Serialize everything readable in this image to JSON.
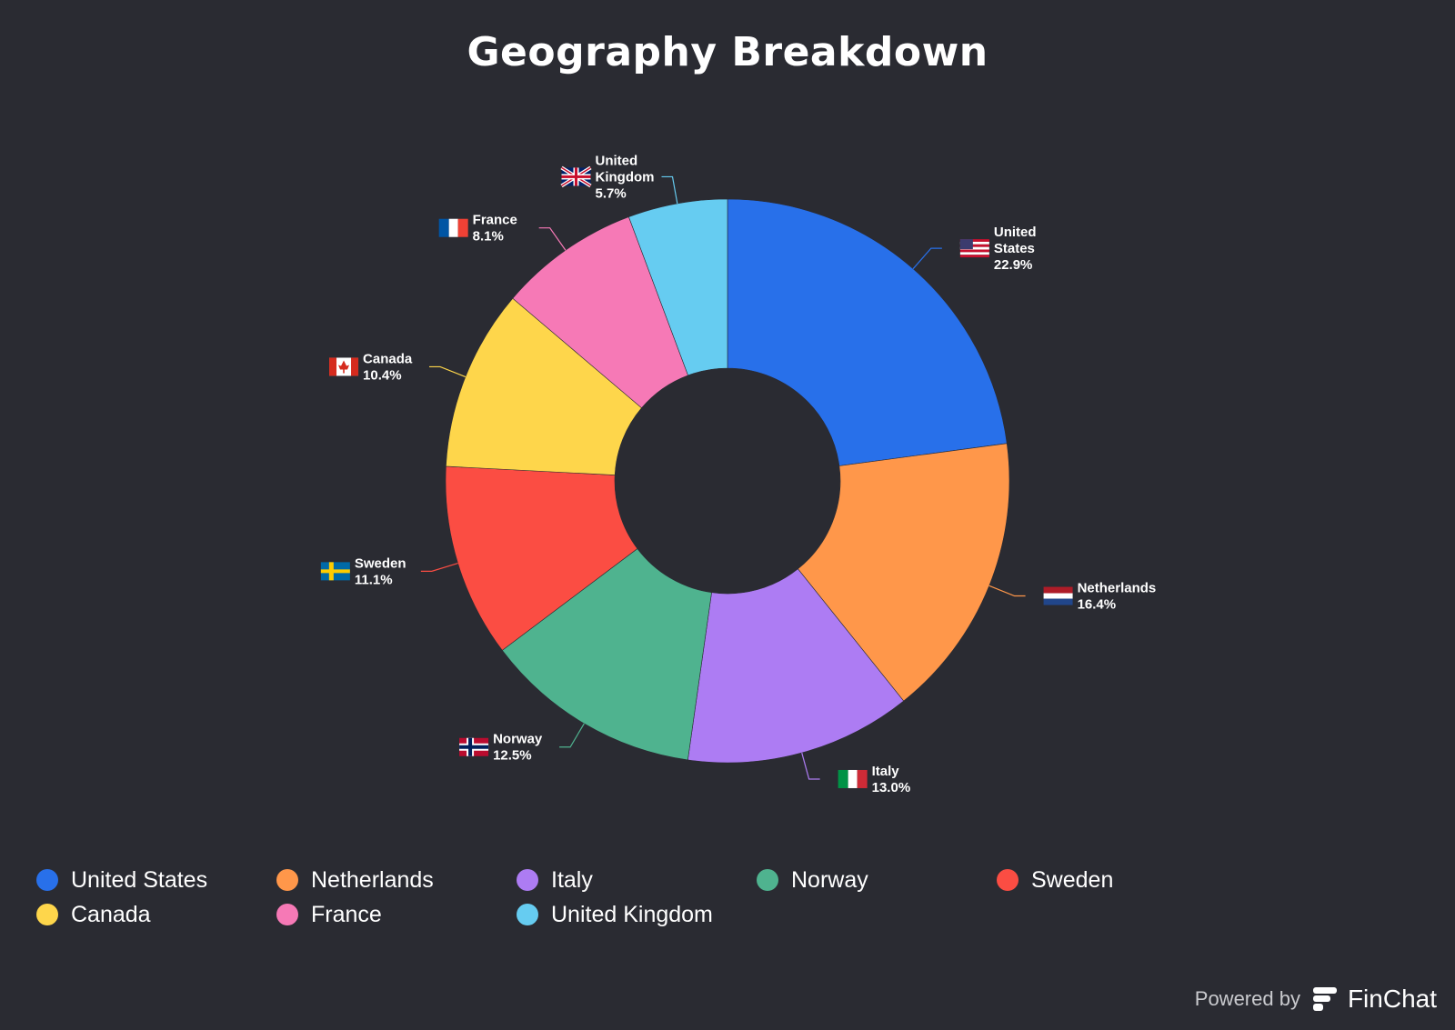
{
  "title": "Geography Breakdown",
  "chart_data": {
    "type": "pie",
    "donut": true,
    "title": "Geography Breakdown",
    "legend_position": "bottom",
    "slices": [
      {
        "name": "United States",
        "label_lines": [
          "United",
          "States"
        ],
        "value": 22.9,
        "pct_label": "22.9%",
        "color": "#2870ea",
        "flag": "us-flag-icon"
      },
      {
        "name": "Netherlands",
        "label_lines": [
          "Netherlands"
        ],
        "value": 16.4,
        "pct_label": "16.4%",
        "color": "#ff974a",
        "flag": "netherlands-flag-icon"
      },
      {
        "name": "Italy",
        "label_lines": [
          "Italy"
        ],
        "value": 13.0,
        "pct_label": "13.0%",
        "color": "#ad7cf3",
        "flag": "italy-flag-icon"
      },
      {
        "name": "Norway",
        "label_lines": [
          "Norway"
        ],
        "value": 12.5,
        "pct_label": "12.5%",
        "color": "#4fb38f",
        "flag": "norway-flag-icon"
      },
      {
        "name": "Sweden",
        "label_lines": [
          "Sweden"
        ],
        "value": 11.1,
        "pct_label": "11.1%",
        "color": "#fb4d43",
        "flag": "sweden-flag-icon"
      },
      {
        "name": "Canada",
        "label_lines": [
          "Canada"
        ],
        "value": 10.4,
        "pct_label": "10.4%",
        "color": "#fed64b",
        "flag": "canada-flag-icon"
      },
      {
        "name": "France",
        "label_lines": [
          "France"
        ],
        "value": 8.1,
        "pct_label": "8.1%",
        "color": "#f679b6",
        "flag": "france-flag-icon"
      },
      {
        "name": "United Kingdom",
        "label_lines": [
          "United",
          "Kingdom"
        ],
        "value": 5.7,
        "pct_label": "5.7%",
        "color": "#66ccf1",
        "flag": "uk-flag-icon"
      }
    ]
  },
  "footer": {
    "powered_by": "Powered by",
    "brand": "FinChat"
  }
}
